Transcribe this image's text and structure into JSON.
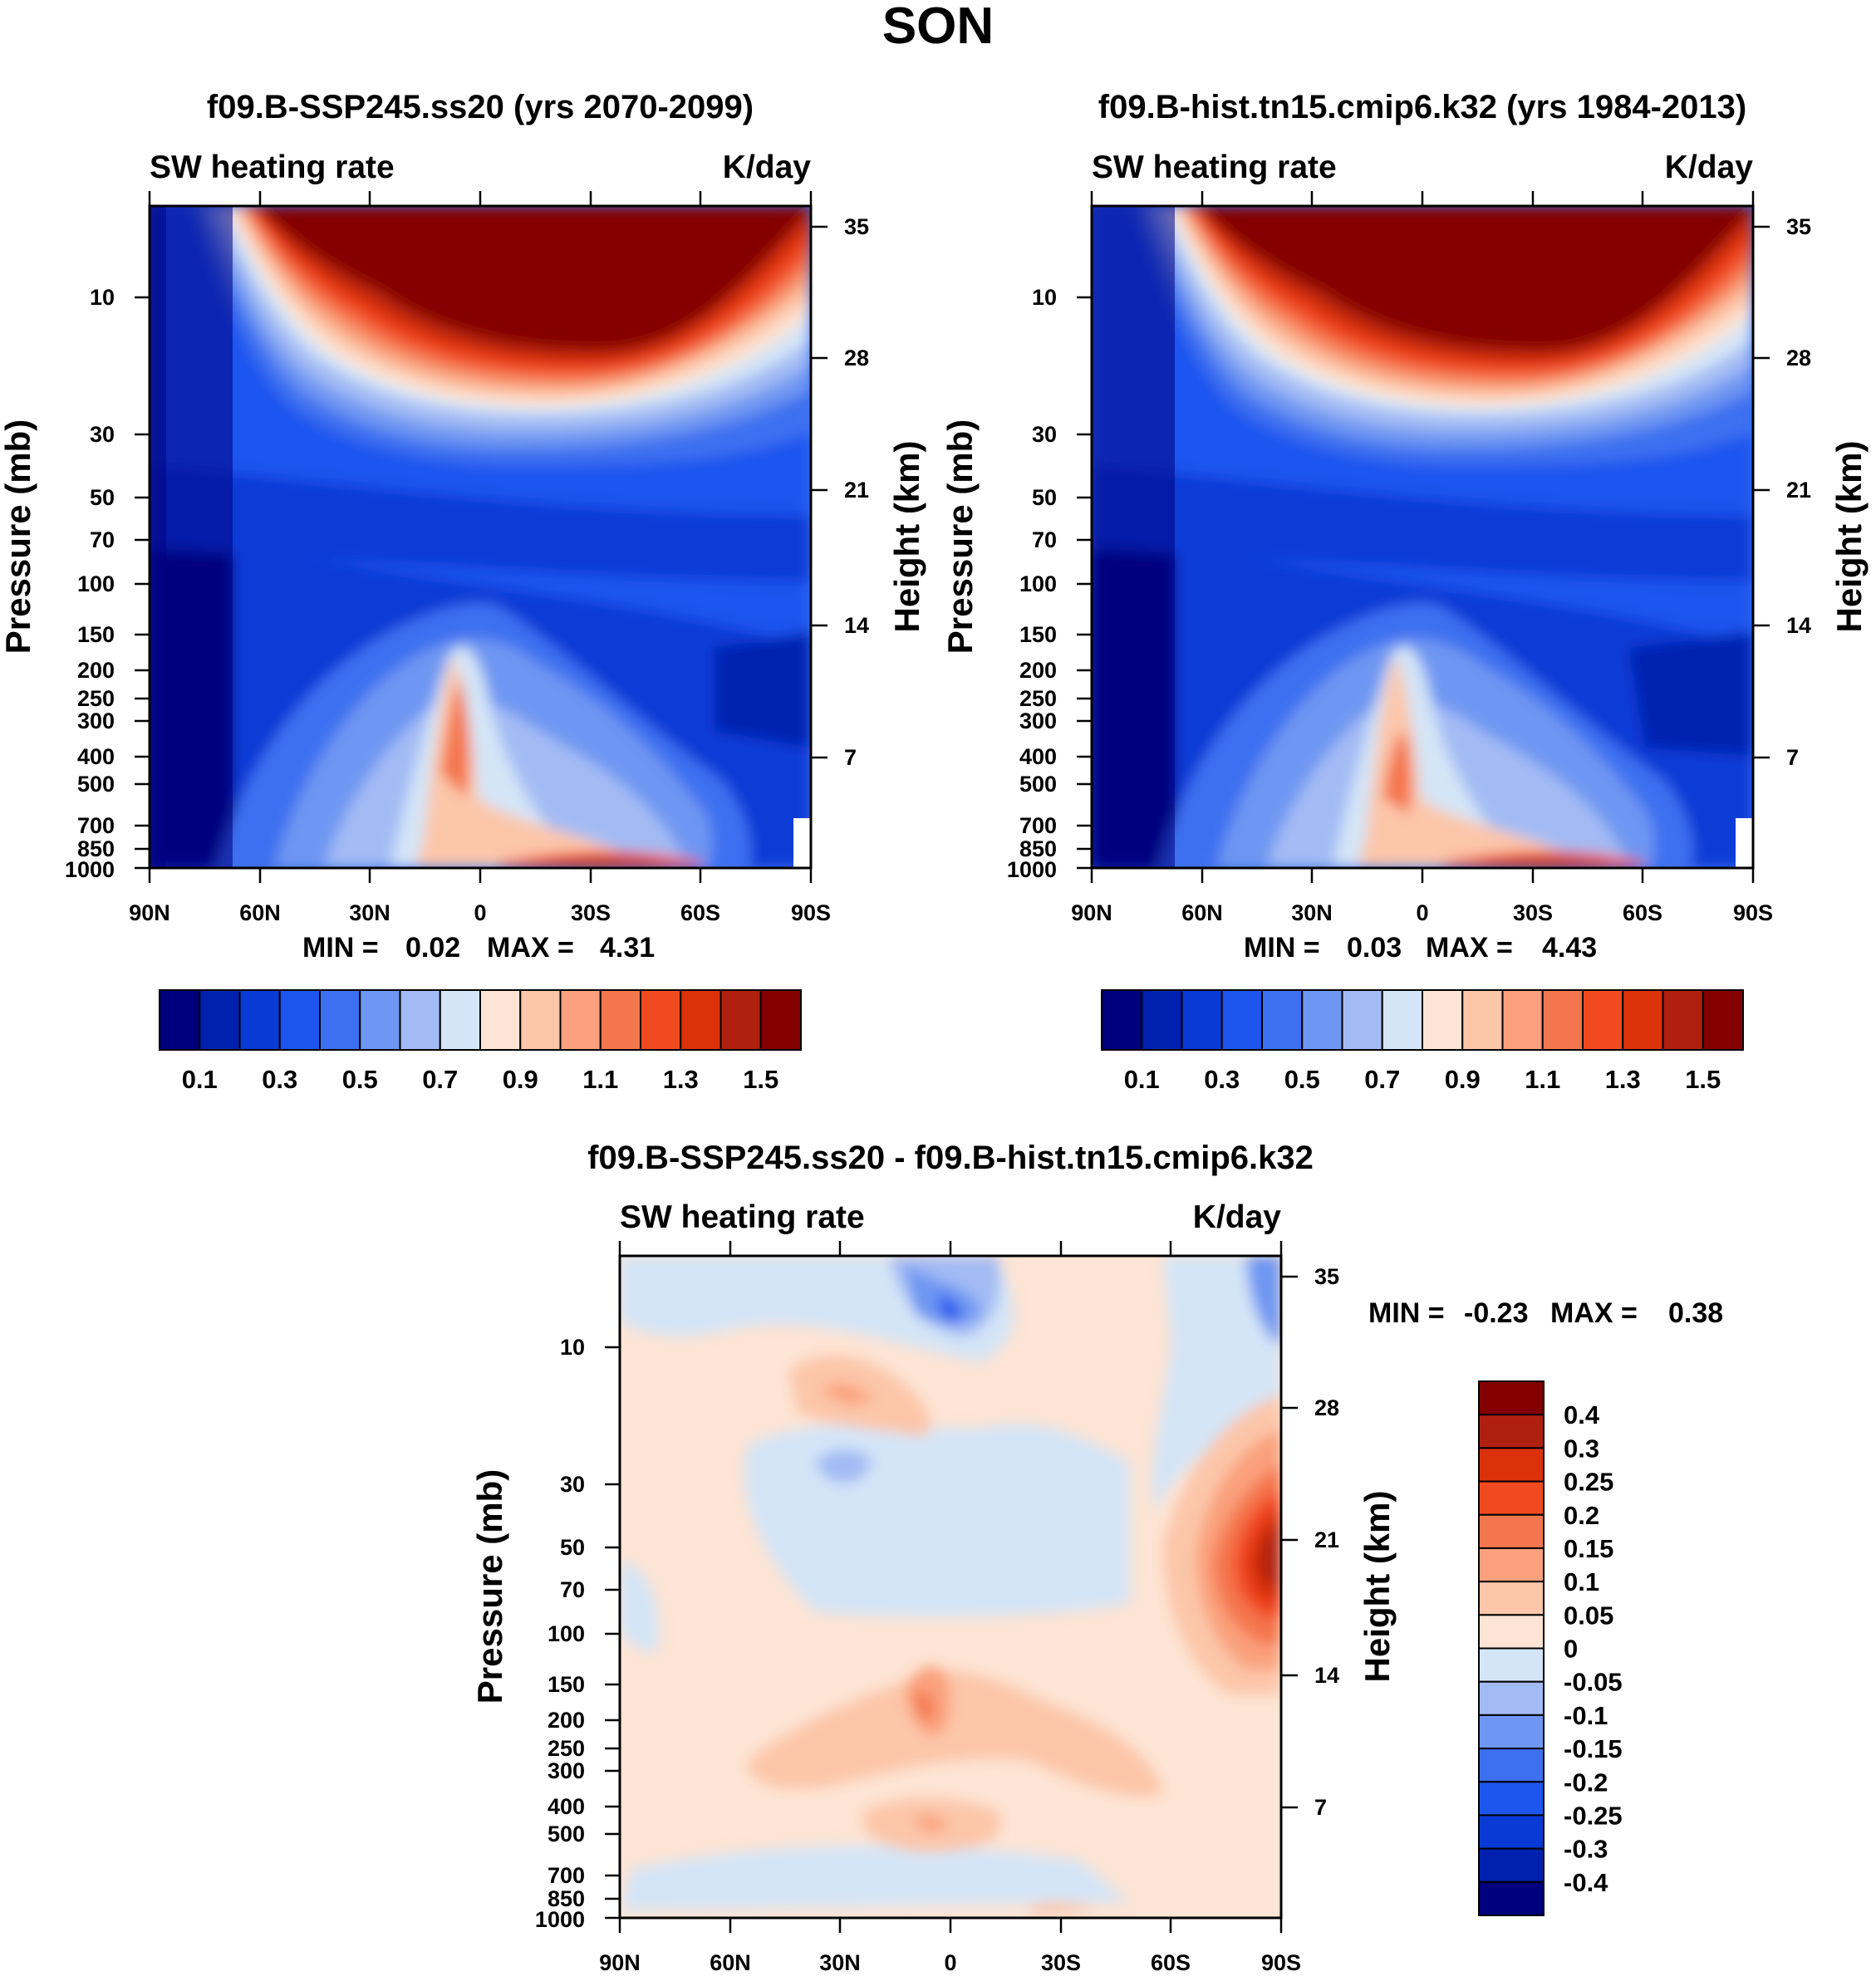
{
  "title": "SON",
  "panels": [
    {
      "title": "f09.B-SSP245.ss20 (yrs 2070-2099)",
      "variable": "SW heating rate",
      "units": "K/day",
      "min_label": "MIN =",
      "min_value": "0.02",
      "max_label": "MAX =",
      "max_value": "4.31"
    },
    {
      "title": "f09.B-hist.tn15.cmip6.k32 (yrs 1984-2013)",
      "variable": "SW heating rate",
      "units": "K/day",
      "min_label": "MIN =",
      "min_value": "0.03",
      "max_label": "MAX =",
      "max_value": "4.43"
    },
    {
      "title": "f09.B-SSP245.ss20 - f09.B-hist.tn15.cmip6.k32",
      "variable": "SW heating rate",
      "units": "K/day",
      "min_label": "MIN =",
      "min_value": "-0.23",
      "max_label": "MAX =",
      "max_value": "0.38"
    }
  ],
  "chart_data": [
    {
      "type": "heatmap",
      "title": "f09.B-SSP245.ss20 (yrs 2070-2099)",
      "xlabel": "",
      "ylabel": "Pressure (mb)",
      "y2label": "Height (km)",
      "x_ticks": [
        "90N",
        "60N",
        "30N",
        "0",
        "30S",
        "60S",
        "90S"
      ],
      "y_ticks": [
        "10",
        "30",
        "50",
        "70",
        "100",
        "150",
        "200",
        "250",
        "300",
        "400",
        "500",
        "700",
        "850",
        "1000"
      ],
      "y2_ticks": [
        "35",
        "28",
        "21",
        "14",
        "7"
      ],
      "min": 0.02,
      "max": 4.31,
      "colorbar_labels": [
        "0.1",
        "0.3",
        "0.5",
        "0.7",
        "0.9",
        "1.1",
        "1.3",
        "1.5"
      ],
      "colorbar_colors": [
        "#00007f",
        "#0020b0",
        "#0a3ad6",
        "#1f55ef",
        "#3d70f0",
        "#6e96f2",
        "#a3bbf4",
        "#d4e5f7",
        "#fde4d4",
        "#fcc6a9",
        "#faa07c",
        "#f4764e",
        "#f24a20",
        "#dc320c",
        "#b02010",
        "#840000"
      ]
    },
    {
      "type": "heatmap",
      "title": "f09.B-hist.tn15.cmip6.k32 (yrs 1984-2013)",
      "xlabel": "",
      "ylabel": "Pressure (mb)",
      "y2label": "Height (km)",
      "x_ticks": [
        "90N",
        "60N",
        "30N",
        "0",
        "30S",
        "60S",
        "90S"
      ],
      "y_ticks": [
        "10",
        "30",
        "50",
        "70",
        "100",
        "150",
        "200",
        "250",
        "300",
        "400",
        "500",
        "700",
        "850",
        "1000"
      ],
      "y2_ticks": [
        "35",
        "28",
        "21",
        "14",
        "7"
      ],
      "min": 0.03,
      "max": 4.43,
      "colorbar_labels": [
        "0.1",
        "0.3",
        "0.5",
        "0.7",
        "0.9",
        "1.1",
        "1.3",
        "1.5"
      ],
      "colorbar_colors": [
        "#00007f",
        "#0020b0",
        "#0a3ad6",
        "#1f55ef",
        "#3d70f0",
        "#6e96f2",
        "#a3bbf4",
        "#d4e5f7",
        "#fde4d4",
        "#fcc6a9",
        "#faa07c",
        "#f4764e",
        "#f24a20",
        "#dc320c",
        "#b02010",
        "#840000"
      ]
    },
    {
      "type": "heatmap",
      "title": "f09.B-SSP245.ss20 - f09.B-hist.tn15.cmip6.k32",
      "xlabel": "",
      "ylabel": "Pressure (mb)",
      "y2label": "Height (km)",
      "x_ticks": [
        "90N",
        "60N",
        "30N",
        "0",
        "30S",
        "60S",
        "90S"
      ],
      "y_ticks": [
        "10",
        "30",
        "50",
        "70",
        "100",
        "150",
        "200",
        "250",
        "300",
        "400",
        "500",
        "700",
        "850",
        "1000"
      ],
      "y2_ticks": [
        "35",
        "28",
        "21",
        "14",
        "7"
      ],
      "min": -0.23,
      "max": 0.38,
      "colorbar_labels": [
        "0.4",
        "0.3",
        "0.25",
        "0.2",
        "0.15",
        "0.1",
        "0.05",
        "0",
        "-0.05",
        "-0.1",
        "-0.15",
        "-0.2",
        "-0.25",
        "-0.3",
        "-0.4"
      ],
      "colorbar_colors": [
        "#840000",
        "#b02010",
        "#dc320c",
        "#f24a20",
        "#f4764e",
        "#faa07c",
        "#fcc6a9",
        "#fde4d4",
        "#d4e5f7",
        "#a3bbf4",
        "#6e96f2",
        "#3d70f0",
        "#1f55ef",
        "#0a3ad6",
        "#0020b0",
        "#00007f"
      ]
    }
  ]
}
